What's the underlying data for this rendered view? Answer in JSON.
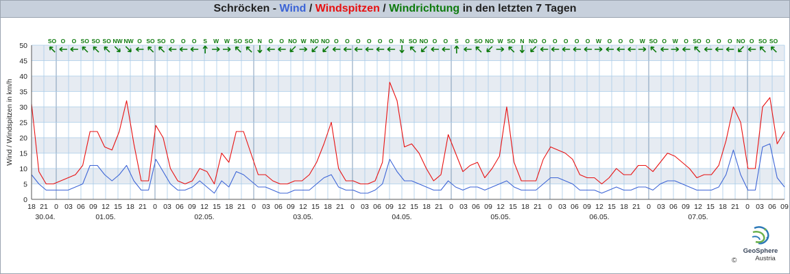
{
  "title": {
    "station": "Schröcken",
    "sep1": " - ",
    "wind": "Wind",
    "sep2": " / ",
    "gusts": "Windspitzen",
    "sep3": " / ",
    "direction": "Windrichtung",
    "suffix": " in den letzten 7 Tagen"
  },
  "colors": {
    "wind": "#3c64d6",
    "gusts": "#e81010",
    "direction": "#0d7a0d",
    "title_bg": "#c7d0dc",
    "band": "#e6ebf2",
    "grid": "#a8cbe8"
  },
  "logo": {
    "icon": "geosphere-logo-icon",
    "line1": "GeoSphere",
    "line2": "Austria",
    "copyright": "©"
  },
  "chart_data": {
    "type": "line",
    "ylabel": "Wind / Windspitzen in km/h",
    "ylim": [
      0,
      50
    ],
    "yticks": [
      0,
      5,
      10,
      15,
      20,
      25,
      30,
      35,
      40,
      45,
      50
    ],
    "x_start": "2025-04-30T18:00",
    "x_end": "2025-05-07T09:00",
    "x_tick_labels": [
      "18",
      "21",
      "0",
      "03",
      "06",
      "09",
      "12",
      "15",
      "18",
      "21",
      "0",
      "03",
      "06",
      "09",
      "12",
      "15",
      "18",
      "21",
      "0",
      "03",
      "06",
      "09",
      "12",
      "15",
      "18",
      "21",
      "0",
      "03",
      "06",
      "09",
      "12",
      "15",
      "18",
      "21",
      "0",
      "03",
      "06",
      "09",
      "12",
      "15",
      "18",
      "21",
      "0",
      "03",
      "06",
      "09",
      "12",
      "15",
      "18",
      "21",
      "0",
      "03",
      "06",
      "09",
      "12",
      "15",
      "18",
      "21",
      "0",
      "03",
      "06",
      "09"
    ],
    "date_labels": [
      {
        "label": "30.04.",
        "x": "2025-04-30T00:00"
      },
      {
        "label": "01.05.",
        "x": "2025-05-01T00:00"
      },
      {
        "label": "02.05.",
        "x": "2025-05-02T00:00"
      },
      {
        "label": "03.05.",
        "x": "2025-05-03T00:00"
      },
      {
        "label": "04.05.",
        "x": "2025-05-04T00:00"
      },
      {
        "label": "05.05.",
        "x": "2025-05-05T00:00"
      },
      {
        "label": "06.05.",
        "x": "2025-05-06T00:00"
      },
      {
        "label": "07.05.",
        "x": "2025-05-07T00:00"
      }
    ],
    "grid": true,
    "x_step": "3h",
    "series": [
      {
        "name": "Wind",
        "color": "#3c64d6",
        "values": [
          8,
          5,
          3,
          3,
          3,
          3,
          4,
          5,
          11,
          11,
          8,
          6,
          8,
          11,
          6,
          3,
          3,
          13,
          9,
          5,
          3,
          3,
          4,
          6,
          4,
          2,
          6,
          4,
          9,
          8,
          6,
          4,
          4,
          3,
          2,
          2,
          3,
          3,
          3,
          5,
          7,
          8,
          4,
          3,
          3,
          2,
          2,
          3,
          5,
          13,
          9,
          6,
          6,
          5,
          4,
          3,
          3,
          6,
          4,
          3,
          4,
          4,
          3,
          4,
          5,
          6,
          4,
          3,
          3,
          3,
          5,
          7,
          7,
          6,
          5,
          3,
          3,
          3,
          2,
          3,
          4,
          3,
          3,
          4,
          4,
          3,
          5,
          6,
          6,
          5,
          4,
          3,
          3,
          3,
          4,
          8,
          16,
          8,
          3,
          3,
          17,
          18,
          7,
          4
        ]
      },
      {
        "name": "Windspitzen",
        "color": "#e81010",
        "values": [
          31,
          9,
          5,
          5,
          6,
          7,
          8,
          11,
          22,
          22,
          17,
          16,
          22,
          32,
          18,
          6,
          6,
          24,
          20,
          10,
          6,
          5,
          6,
          10,
          9,
          5,
          15,
          12,
          22,
          22,
          15,
          8,
          8,
          6,
          5,
          5,
          6,
          6,
          8,
          12,
          18,
          25,
          10,
          6,
          6,
          5,
          5,
          6,
          12,
          38,
          32,
          17,
          18,
          15,
          10,
          6,
          8,
          21,
          15,
          9,
          11,
          12,
          7,
          10,
          14,
          30,
          12,
          6,
          6,
          6,
          13,
          17,
          16,
          15,
          13,
          8,
          7,
          7,
          5,
          7,
          10,
          8,
          8,
          11,
          11,
          9,
          12,
          15,
          14,
          12,
          10,
          7,
          8,
          8,
          11,
          19,
          30,
          25,
          10,
          10,
          30,
          33,
          18,
          22
        ]
      }
    ],
    "wind_direction": [
      "SO",
      "O",
      "O",
      "SO",
      "SO",
      "SO",
      "NW",
      "NW",
      "O",
      "SO",
      "SO",
      "O",
      "O",
      "O",
      "S",
      "W",
      "W",
      "SO",
      "SO",
      "N",
      "O",
      "O",
      "NO",
      "W",
      "NO",
      "NO",
      "O",
      "O",
      "O",
      "O",
      "O",
      "O",
      "N",
      "SO",
      "NO",
      "O",
      "O",
      "S",
      "O",
      "SO",
      "NO",
      "W",
      "SO",
      "N",
      "NO",
      "O",
      "O",
      "O",
      "O",
      "O",
      "W",
      "O",
      "O",
      "O",
      "W",
      "SO",
      "O",
      "W",
      "O",
      "SO",
      "O",
      "O",
      "O",
      "NO",
      "O",
      "SO",
      "SO"
    ]
  }
}
